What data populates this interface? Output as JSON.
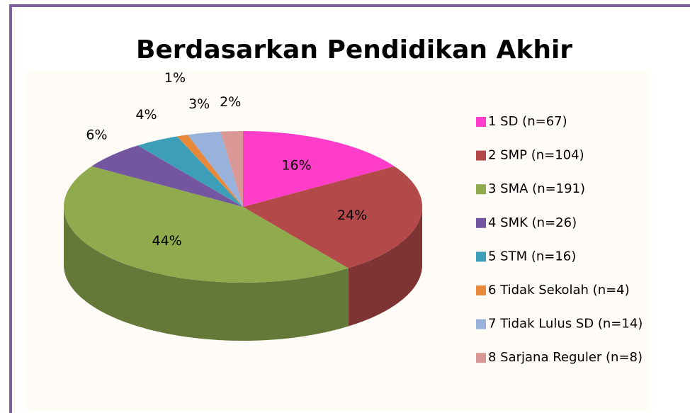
{
  "chart_data": {
    "type": "pie",
    "title": "Berdasarkan Pendidikan Akhir",
    "categories": [
      "1 SD (n=67)",
      "2 SMP (n=104)",
      "3 SMA (n=191)",
      "4 SMK (n=26)",
      "5 STM (n=16)",
      "6 Tidak Sekolah (n=4)",
      "7 Tidak Lulus SD (n=14)",
      "8 Sarjana Reguler (n=8)"
    ],
    "values": [
      16,
      24,
      44,
      6,
      4,
      1,
      3,
      2
    ],
    "value_labels": [
      "16%",
      "24%",
      "44%",
      "6%",
      "4%",
      "1%",
      "3%",
      "2%"
    ],
    "colors": [
      "#ff3dc8",
      "#b34a49",
      "#8fab4e",
      "#7456a0",
      "#3c9fb7",
      "#e8883a",
      "#99b2dc",
      "#d99795"
    ],
    "legend": "right"
  }
}
